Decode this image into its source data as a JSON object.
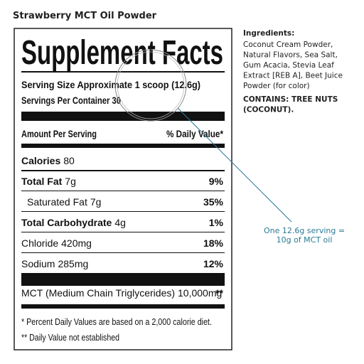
{
  "title": "Strawberry MCT Oil Powder",
  "label": {
    "heading": "Supplement Facts",
    "serving_size": "Serving Size Approximate 1 scoop (12.6g)",
    "servings_per_container": "Servings Per Container 30",
    "amount_per_serving": "Amount Per Serving",
    "daily_value_header": "% Daily Value*",
    "rows": [
      {
        "name": "Calories",
        "amount": "80"
      },
      {
        "name": "Total Fat",
        "amount": "7g",
        "dv": "9%"
      },
      {
        "name": "Saturated Fat",
        "amount": "7g",
        "dv": "35%"
      },
      {
        "name": "Total Carbohydrate",
        "amount": "4g",
        "dv": "1%"
      },
      {
        "name": "Chloride",
        "amount": "420mg",
        "dv": "18%"
      },
      {
        "name": "Sodium",
        "amount": "285mg",
        "dv": "12%"
      },
      {
        "name": "MCT (Medium Chain Triglycerides)",
        "amount": "10,000mg",
        "dv": "**"
      }
    ],
    "footnotes": [
      "* Percent Daily Values are based on a 2,000 calorie diet.",
      "** Daily Value not established"
    ]
  },
  "ingredients": {
    "heading": "Ingredients:",
    "lines": [
      "Coconut Cream Powder,",
      "Natural Flavors, Sea Salt,",
      "Gum Acacia, Stevia Leaf",
      "Extract [REB A], Beet Juice",
      "Powder (for color)"
    ],
    "contains": [
      "CONTAINS: TREE NUTS",
      "(COCONUT)."
    ]
  },
  "callout": [
    "One 12.6g serving =",
    "10g of MCT oil"
  ]
}
